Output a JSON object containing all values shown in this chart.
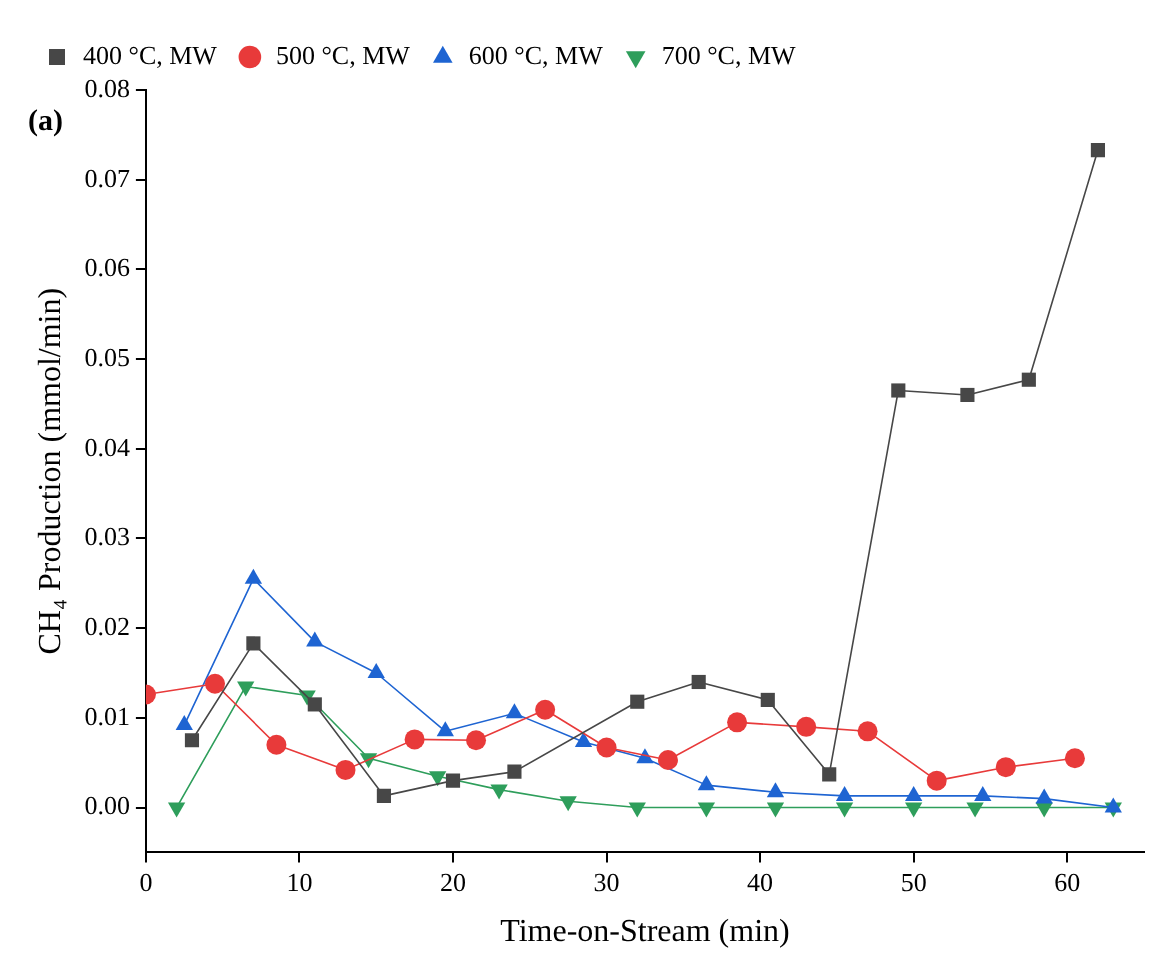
{
  "chart_data": {
    "type": "line",
    "xlabel": "Time-on-Stream (min)",
    "ylabel": "CH₄ Production (mmol/min)",
    "annotations": [
      "(a)"
    ],
    "xlim": [
      0,
      65
    ],
    "xticks": [
      0,
      10,
      20,
      30,
      40,
      50,
      60
    ],
    "ylim": [
      -0.005,
      0.08
    ],
    "yticks": [
      {
        "value": 0,
        "label": "0.00"
      },
      {
        "value": 0.01,
        "label": "0.01"
      },
      {
        "value": 0.02,
        "label": "0.02"
      },
      {
        "value": 0.03,
        "label": "0.03"
      },
      {
        "value": 0.04,
        "label": "0.04"
      },
      {
        "value": 0.05,
        "label": "0.05"
      },
      {
        "value": 0.06,
        "label": "0.06"
      },
      {
        "value": 0.07,
        "label": "0.07"
      },
      {
        "value": 0.08,
        "label": "0.08"
      }
    ],
    "grid": false,
    "legend": "top left",
    "series": [
      {
        "name": "400 °C, MW",
        "color": "#474747",
        "marker": "square",
        "x": [
          3,
          7,
          11,
          15.5,
          20,
          24,
          32,
          36,
          40.5,
          44.5,
          49,
          53.5,
          57.5,
          62
        ],
        "values": [
          0.0075,
          0.0183,
          0.0115,
          0.0013,
          0.003,
          0.004,
          0.0118,
          0.014,
          0.012,
          0.0037,
          0.0465,
          0.046,
          0.0477,
          0.0733
        ]
      },
      {
        "name": "500 °C, MW",
        "color": "#e83a3a",
        "marker": "circle",
        "x": [
          0,
          4.5,
          8.5,
          13,
          17.5,
          21.5,
          26,
          30,
          34,
          38.5,
          43,
          47,
          51.5,
          56,
          60.5
        ],
        "values": [
          0.0126,
          0.0138,
          0.007,
          0.0042,
          0.0076,
          0.0075,
          0.0109,
          0.0067,
          0.0053,
          0.0095,
          0.009,
          0.0085,
          0.003,
          0.0045,
          0.0055
        ]
      },
      {
        "name": "600 °C, MW",
        "color": "#1e64d2",
        "marker": "triangle",
        "x": [
          2.5,
          7,
          11,
          15,
          19.5,
          24,
          28.5,
          32.5,
          36.5,
          41,
          45.5,
          50,
          54.5,
          58.5,
          63
        ],
        "values": [
          0.0092,
          0.0255,
          0.0185,
          0.015,
          0.0085,
          0.0105,
          0.0073,
          0.0055,
          0.0025,
          0.0017,
          0.0013,
          0.0013,
          0.0013,
          0.001,
          0
        ]
      },
      {
        "name": "700 °C, MW",
        "color": "#2e9e5b",
        "marker": "triangle-down",
        "x": [
          2,
          6.5,
          10.5,
          14.5,
          19,
          23,
          27.5,
          32,
          36.5,
          41,
          45.5,
          50,
          54,
          58.5,
          63
        ],
        "values": [
          0,
          0.0135,
          0.0125,
          0.0055,
          0.0035,
          0.002,
          0.0007,
          0,
          0,
          0,
          0,
          0,
          0,
          0,
          0
        ]
      }
    ]
  }
}
